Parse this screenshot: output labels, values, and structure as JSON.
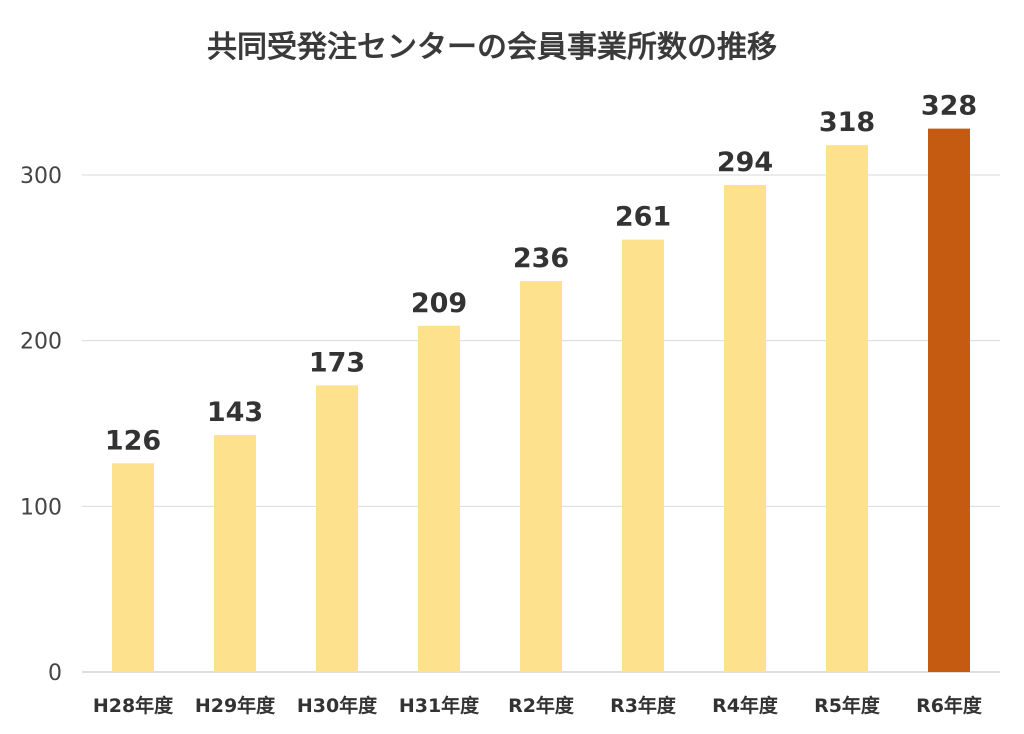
{
  "chart_data": {
    "type": "bar",
    "title": "共同受発注センターの会員事業所数の推移",
    "xlabel": "",
    "ylabel": "",
    "categories": [
      "H28年度",
      "H29年度",
      "H30年度",
      "H31年度",
      "R2年度",
      "R3年度",
      "R4年度",
      "R5年度",
      "R6年度"
    ],
    "values": [
      126,
      143,
      173,
      209,
      236,
      261,
      294,
      318,
      328
    ],
    "ylim": [
      0,
      330
    ],
    "yticks": [
      0,
      100,
      200,
      300
    ],
    "grid": true,
    "legend": "none",
    "colors": {
      "bar": "#fde18d",
      "highlight": "#c55a11",
      "grid": "#d9d9d9",
      "text": "#333333"
    },
    "highlight_index": 8
  }
}
